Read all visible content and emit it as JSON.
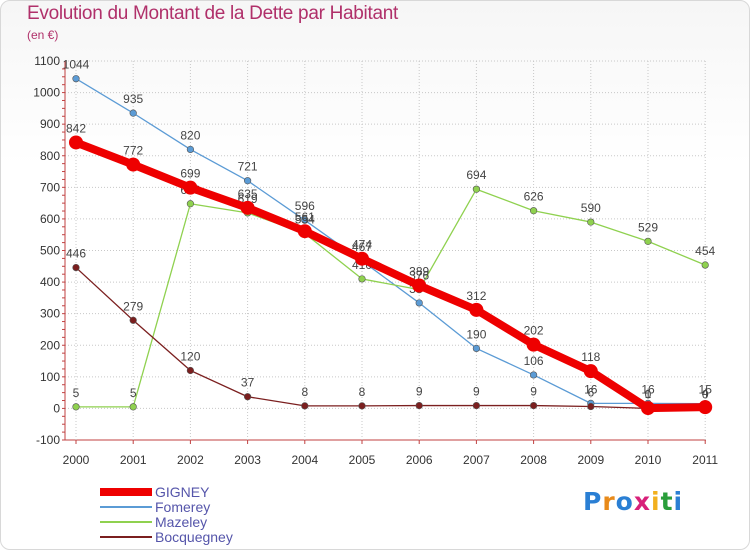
{
  "title": "Evolution du Montant de la Dette par Habitant",
  "subtitle": "(en €)",
  "brand": {
    "letters": [
      "P",
      "r",
      "o",
      "x",
      "i",
      "t",
      "i"
    ],
    "colors": [
      "#2a7fd4",
      "#e88a1a",
      "#2a7fd4",
      "#d8207a",
      "#f2b01e",
      "#2a9e3b",
      "#2a7fd4"
    ]
  },
  "chart_data": {
    "type": "line",
    "title": "Evolution du Montant de la Dette par Habitant",
    "ylabel": "(en €)",
    "xlabel": "",
    "x": [
      "2000",
      "2001",
      "2002",
      "2003",
      "2004",
      "2005",
      "2006",
      "2007",
      "2008",
      "2009",
      "2010",
      "2011"
    ],
    "yticks": [
      "-100",
      "0",
      "100",
      "200",
      "300",
      "400",
      "500",
      "600",
      "700",
      "800",
      "900",
      "1000",
      "1100"
    ],
    "ylim": [
      -100,
      1100
    ],
    "legend_position": "bottom-left",
    "series": [
      {
        "name": "Fomerey",
        "color": "#5b9bd5",
        "width": 1.3,
        "dot": 3.3,
        "values": [
          1044,
          935,
          820,
          721,
          596,
          467,
          334,
          190,
          106,
          16,
          16,
          15
        ],
        "labels": [
          "1044",
          "935",
          "820",
          "721",
          "596",
          "467",
          "334",
          "190",
          "106",
          "16",
          "16",
          "15"
        ]
      },
      {
        "name": "Mazeley",
        "color": "#8fd14f",
        "width": 1.3,
        "dot": 3.3,
        "values": [
          5,
          5,
          648,
          619,
          554,
          410,
          376,
          694,
          626,
          590,
          529,
          454
        ],
        "labels": [
          "5",
          "5",
          "648",
          "619",
          "554",
          "410",
          "376",
          "694",
          "626",
          "590",
          "529",
          "454"
        ]
      },
      {
        "name": "Bocquegney",
        "color": "#7b1f1f",
        "width": 1.3,
        "dot": 3.3,
        "values": [
          446,
          279,
          120,
          37,
          8,
          8,
          9,
          9,
          9,
          6,
          0,
          0
        ],
        "labels": [
          "446",
          "279",
          "120",
          "37",
          "8",
          "8",
          "9",
          "9",
          "9",
          "6",
          "0",
          "0"
        ]
      },
      {
        "name": "GIGNEY",
        "color": "#ee0000",
        "width": 8,
        "dot": 7,
        "values": [
          842,
          772,
          699,
          635,
          561,
          474,
          389,
          312,
          202,
          118,
          1,
          4
        ],
        "labels": [
          "842",
          "772",
          "699",
          "635",
          "561",
          "474",
          "389",
          "312",
          "202",
          "118",
          "1",
          "4"
        ]
      }
    ],
    "legend": [
      "GIGNEY",
      "Fomerey",
      "Mazeley",
      "Bocquegney"
    ]
  }
}
